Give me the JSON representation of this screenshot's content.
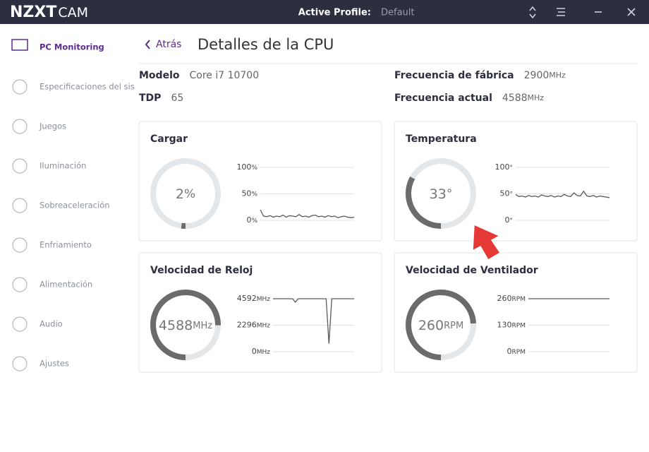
{
  "header": {
    "logo_bold": "NZXT",
    "logo_light": "CAM",
    "profile_label": "Active Profile:",
    "profile_value": "Default"
  },
  "sidebar": {
    "items": [
      {
        "label": "PC Monitoring",
        "active": true
      },
      {
        "label": "Especificaciones del sis",
        "active": false
      },
      {
        "label": "Juegos",
        "active": false
      },
      {
        "label": "Iluminación",
        "active": false
      },
      {
        "label": "Sobreaceleración",
        "active": false
      },
      {
        "label": "Enfriamiento",
        "active": false
      },
      {
        "label": "Alimentación",
        "active": false
      },
      {
        "label": "Audio",
        "active": false
      },
      {
        "label": "Ajustes",
        "active": false
      }
    ]
  },
  "page": {
    "back": "Atrás",
    "title": "Detalles de la CPU"
  },
  "specs": [
    {
      "label": "Modelo",
      "value": "Core i7 10700"
    },
    {
      "label": "TDP",
      "value": "65"
    },
    {
      "label": "Frecuencia de fábrica",
      "value": "2900",
      "unit": "MHz"
    },
    {
      "label": "Frecuencia actual",
      "value": "4588",
      "unit": "MHz"
    }
  ],
  "panels": [
    {
      "title": "Cargar",
      "unit": "%",
      "value": 2,
      "gauge_lim": [
        0,
        100
      ],
      "ylim": [
        0,
        100
      ],
      "yticks": [
        0,
        50,
        100
      ],
      "values": [
        20,
        8,
        7,
        9,
        6,
        8,
        7,
        10,
        6,
        9,
        8,
        7,
        11,
        7,
        8,
        6,
        9,
        10,
        7,
        8,
        6,
        9,
        7,
        8,
        5,
        7,
        8,
        6,
        5,
        6
      ]
    },
    {
      "title": "Temperatura",
      "unit": "°",
      "value": 33,
      "gauge_lim": [
        0,
        100
      ],
      "ylim": [
        0,
        100
      ],
      "yticks": [
        0,
        50,
        100
      ],
      "values": [
        49,
        45,
        46,
        44,
        47,
        45,
        46,
        44,
        48,
        46,
        45,
        47,
        44,
        46,
        45,
        49,
        46,
        45,
        52,
        47,
        46,
        55,
        46,
        45,
        47,
        44,
        46,
        45,
        44,
        43
      ]
    },
    {
      "title": "Velocidad de Reloj",
      "unit": "MHz",
      "value": 4588,
      "gauge_lim": [
        0,
        6100
      ],
      "ylim": [
        0,
        4592
      ],
      "yticks": [
        0,
        2296,
        4592
      ],
      "values": [
        4592,
        4592,
        4592,
        4592,
        4592,
        4592,
        4592,
        4592,
        4300,
        4592,
        4592,
        4592,
        4592,
        4592,
        4592,
        4592,
        4592,
        4592,
        4592,
        4592,
        700,
        4592,
        4592,
        4592,
        4592,
        4592,
        4592,
        4592,
        4592,
        4592
      ]
    },
    {
      "title": "Velocidad de Ventilador",
      "unit": "RPM",
      "value": 260,
      "gauge_lim": [
        0,
        350
      ],
      "ylim": [
        0,
        260
      ],
      "yticks": [
        0,
        130,
        260
      ],
      "values": [
        260,
        260,
        260,
        260,
        260,
        260,
        260,
        260,
        260,
        260
      ]
    }
  ]
}
